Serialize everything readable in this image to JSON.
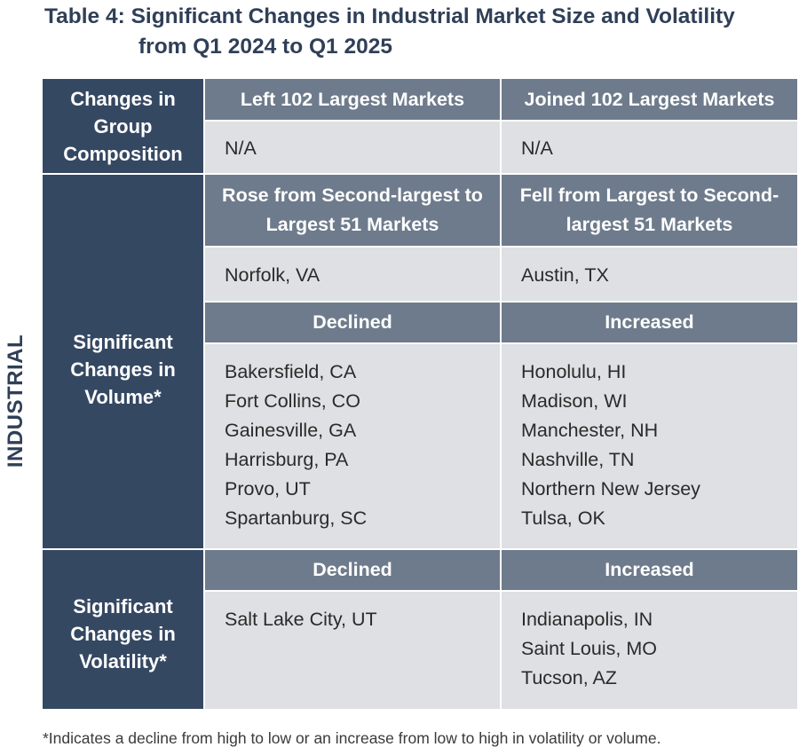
{
  "title": {
    "line1": "Table 4: Significant Changes in Industrial Market Size and Volatility",
    "line2": "from Q1 2024 to Q1 2025"
  },
  "side_label": "INDUSTRIAL",
  "composition": {
    "row_label": "Changes in Group Composition",
    "left": {
      "header": "Left 102 Largest Markets",
      "items": [
        "N/A"
      ]
    },
    "right": {
      "header": "Joined 102 Largest Markets",
      "items": [
        "N/A"
      ]
    }
  },
  "volume": {
    "row_label": "Significant Changes in Volume*",
    "rose": {
      "header": "Rose from Second-largest to Largest 51 Markets",
      "items": [
        "Norfolk, VA"
      ]
    },
    "fell": {
      "header": "Fell from Largest to Second-largest 51 Markets",
      "items": [
        "Austin, TX"
      ]
    },
    "declined": {
      "header": "Declined",
      "items": [
        "Bakersfield, CA",
        "Fort Collins, CO",
        "Gainesville, GA",
        "Harrisburg, PA",
        "Provo, UT",
        "Spartanburg, SC"
      ]
    },
    "increased": {
      "header": "Increased",
      "items": [
        "Honolulu, HI",
        "Madison, WI",
        "Manchester, NH",
        "Nashville, TN",
        "Northern New Jersey",
        "Tulsa, OK"
      ]
    }
  },
  "volatility": {
    "row_label": "Significant Changes in Volatility*",
    "declined": {
      "header": "Declined",
      "items": [
        "Salt Lake City, UT"
      ]
    },
    "increased": {
      "header": "Increased",
      "items": [
        "Indianapolis, IN",
        "Saint Louis, MO",
        "Tucson, AZ"
      ]
    }
  },
  "footnote": "*Indicates a decline from high to low or an increase from low to high in volatility or volume.",
  "colors": {
    "title": "#2f3f57",
    "row_header": "#354862",
    "col_header": "#6e7b8c",
    "cell": "#dfe0e3"
  }
}
